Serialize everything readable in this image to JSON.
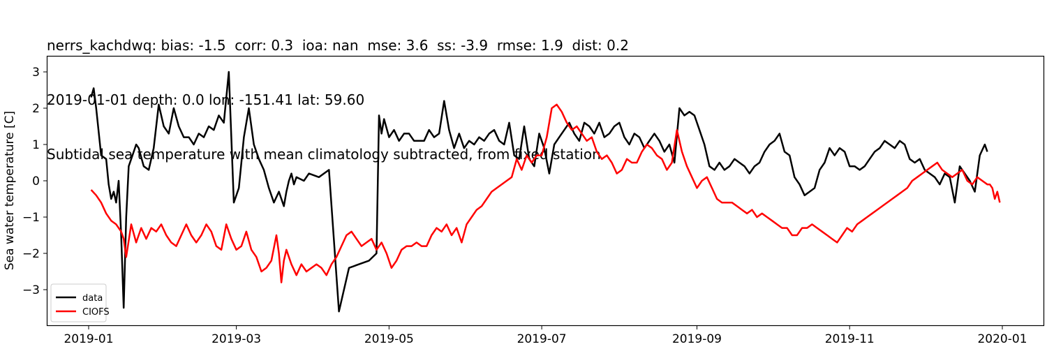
{
  "title": {
    "line1": "nerrs_kachdwq: bias: -1.5  corr: 0.3  ioa: nan  mse: 3.6  ss: -3.9  rmse: 1.9  dist: 0.2",
    "line2": "2019-01-01 depth: 0.0 lon: -151.41 lat: 59.60",
    "line3": "Subtidal sea temperature with mean climatology subtracted, from fixed station"
  },
  "colors": {
    "data": "#000000",
    "model": "#ff0000",
    "axis": "#000000",
    "background": "#ffffff"
  },
  "chart_data": {
    "type": "line",
    "title": "Subtidal sea temperature with mean climatology subtracted, from fixed station",
    "subtitle": "nerrs_kachdwq: bias: -1.5  corr: 0.3  ioa: nan  mse: 3.6  ss: -3.9  rmse: 1.9  dist: 0.2 | 2019-01-01 depth: 0.0 lon: -151.41 lat: 59.60",
    "xlabel": "",
    "ylabel": "Sea water temperature [C]",
    "ylim": [
      -4.0,
      3.45
    ],
    "xlim_days": [
      -16.5,
      382
    ],
    "grid": false,
    "legend_position": "lower left",
    "x_ticks": [
      {
        "label": "2019-01",
        "day": 0
      },
      {
        "label": "2019-03",
        "day": 59
      },
      {
        "label": "2019-05",
        "day": 120
      },
      {
        "label": "2019-07",
        "day": 181
      },
      {
        "label": "2019-09",
        "day": 243
      },
      {
        "label": "2019-11",
        "day": 304
      },
      {
        "label": "2020-01",
        "day": 365
      }
    ],
    "y_ticks": [
      3,
      2,
      1,
      0,
      -1,
      -2,
      -3
    ],
    "x_unit": "day of year 2019 (0 = 2019-01-01)",
    "series": [
      {
        "name": "data",
        "color": "#000000",
        "days": [
          1,
          2,
          3,
          5,
          7,
          8,
          9,
          10,
          11,
          12,
          13,
          14,
          15,
          16,
          17,
          18,
          19,
          20,
          22,
          24,
          26,
          28,
          30,
          32,
          34,
          36,
          38,
          40,
          42,
          44,
          46,
          48,
          50,
          52,
          54,
          56,
          58,
          60,
          62,
          64,
          66,
          68,
          70,
          72,
          74,
          76,
          78,
          79,
          80,
          81,
          82,
          83,
          86,
          88,
          92,
          96,
          100,
          104,
          108,
          112,
          115,
          116,
          117,
          118,
          120,
          122,
          124,
          126,
          128,
          130,
          132,
          134,
          136,
          138,
          140,
          142,
          144,
          146,
          148,
          150,
          152,
          154,
          156,
          158,
          160,
          162,
          164,
          166,
          168,
          170,
          172,
          174,
          176,
          178,
          180,
          182,
          184,
          186,
          188,
          190,
          192,
          194,
          196,
          198,
          200,
          202,
          204,
          206,
          208,
          210,
          212,
          214,
          216,
          218,
          220,
          222,
          224,
          226,
          228,
          230,
          232,
          234,
          236,
          238,
          240,
          242,
          244,
          246,
          248,
          250,
          252,
          254,
          256,
          258,
          260,
          262,
          264,
          266,
          268,
          270,
          272,
          274,
          276,
          278,
          280,
          282,
          284,
          286,
          288,
          290,
          292,
          294,
          296,
          298,
          300,
          302,
          304,
          306,
          308,
          310,
          312,
          314,
          316,
          318,
          320,
          322,
          324,
          326,
          328,
          330,
          332,
          334,
          336,
          338,
          340,
          342,
          344,
          346,
          348,
          350,
          352,
          354,
          356,
          358,
          359,
          360,
          361,
          362,
          363,
          364
        ],
        "values": [
          2.3,
          2.55,
          2.0,
          0.7,
          0.6,
          -0.1,
          -0.5,
          -0.3,
          -0.6,
          0.0,
          -1.5,
          -3.5,
          -1.0,
          0.4,
          0.6,
          0.8,
          1.0,
          0.9,
          0.4,
          0.3,
          0.9,
          2.1,
          1.5,
          1.3,
          2.0,
          1.5,
          1.2,
          1.2,
          1.0,
          1.3,
          1.2,
          1.5,
          1.4,
          1.8,
          1.6,
          3.0,
          -0.6,
          -0.2,
          1.2,
          2.0,
          1.0,
          0.6,
          0.3,
          -0.2,
          -0.6,
          -0.3,
          -0.7,
          -0.3,
          0.0,
          0.2,
          -0.1,
          0.1,
          0.0,
          0.2,
          0.1,
          0.3,
          -3.6,
          -2.4,
          -2.3,
          -2.2,
          -2.0,
          1.8,
          1.3,
          1.7,
          1.2,
          1.4,
          1.1,
          1.3,
          1.3,
          1.1,
          1.1,
          1.1,
          1.4,
          1.2,
          1.3,
          2.2,
          1.4,
          0.9,
          1.3,
          0.9,
          1.1,
          1.0,
          1.2,
          1.1,
          1.3,
          1.4,
          1.1,
          1.0,
          1.6,
          0.7,
          0.6,
          1.5,
          0.6,
          0.4,
          1.3,
          0.9,
          0.2,
          1.0,
          1.2,
          1.4,
          1.6,
          1.3,
          1.1,
          1.6,
          1.5,
          1.3,
          1.6,
          1.2,
          1.3,
          1.5,
          1.6,
          1.2,
          1.0,
          1.3,
          1.2,
          0.9,
          1.1,
          1.3,
          1.1,
          0.8,
          1.0,
          0.5,
          2.0,
          1.8,
          1.9,
          1.8,
          1.4,
          1.0,
          0.4,
          0.3,
          0.5,
          0.3,
          0.4,
          0.6,
          0.5,
          0.4,
          0.2,
          0.4,
          0.5,
          0.8,
          1.0,
          1.1,
          1.3,
          0.8,
          0.7,
          0.1,
          -0.1,
          -0.4,
          -0.3,
          -0.2,
          0.3,
          0.5,
          0.9,
          0.7,
          0.9,
          0.8,
          0.4,
          0.4,
          0.3,
          0.4,
          0.6,
          0.8,
          0.9,
          1.1,
          1.0,
          0.9,
          1.1,
          1.0,
          0.6,
          0.5,
          0.6,
          0.3,
          0.2,
          0.1,
          -0.1,
          0.2,
          0.1,
          -0.6,
          0.4,
          0.2,
          0.0,
          -0.3,
          0.7,
          1.0,
          0.8
        ],
        "values_note": "approximate, read from plot"
      },
      {
        "name": "CIOFS",
        "color": "#ff0000",
        "days": [
          1,
          3,
          5,
          7,
          9,
          11,
          13,
          14,
          15,
          17,
          19,
          21,
          23,
          25,
          27,
          29,
          31,
          33,
          35,
          37,
          39,
          41,
          43,
          45,
          47,
          49,
          51,
          53,
          55,
          57,
          59,
          61,
          63,
          65,
          67,
          69,
          71,
          73,
          75,
          76,
          77,
          78,
          79,
          81,
          83,
          85,
          87,
          89,
          91,
          93,
          95,
          97,
          99,
          101,
          103,
          105,
          107,
          109,
          111,
          113,
          115,
          117,
          119,
          121,
          123,
          125,
          127,
          129,
          131,
          133,
          135,
          137,
          139,
          141,
          143,
          145,
          147,
          149,
          151,
          153,
          155,
          157,
          159,
          161,
          163,
          165,
          167,
          169,
          171,
          173,
          175,
          177,
          179,
          181,
          183,
          185,
          187,
          189,
          191,
          193,
          195,
          197,
          199,
          201,
          203,
          205,
          207,
          209,
          211,
          213,
          215,
          217,
          219,
          221,
          223,
          225,
          227,
          229,
          231,
          233,
          235,
          237,
          239,
          241,
          243,
          245,
          247,
          249,
          251,
          253,
          255,
          257,
          259,
          261,
          263,
          265,
          267,
          269,
          271,
          273,
          275,
          277,
          279,
          281,
          283,
          285,
          287,
          289,
          291,
          293,
          295,
          297,
          299,
          301,
          303,
          305,
          307,
          309,
          311,
          313,
          315,
          317,
          319,
          321,
          323,
          325,
          327,
          329,
          331,
          333,
          335,
          337,
          339,
          341,
          343,
          345,
          347,
          349,
          351,
          353,
          355,
          357,
          359,
          360,
          361,
          362,
          363,
          364
        ],
        "values": [
          -0.25,
          -0.4,
          -0.6,
          -0.9,
          -1.1,
          -1.2,
          -1.4,
          -1.6,
          -2.1,
          -1.2,
          -1.7,
          -1.3,
          -1.6,
          -1.3,
          -1.4,
          -1.2,
          -1.5,
          -1.7,
          -1.8,
          -1.5,
          -1.2,
          -1.5,
          -1.7,
          -1.5,
          -1.2,
          -1.4,
          -1.8,
          -1.9,
          -1.2,
          -1.6,
          -1.9,
          -1.8,
          -1.4,
          -1.9,
          -2.1,
          -2.5,
          -2.4,
          -2.2,
          -1.5,
          -2.0,
          -2.8,
          -2.2,
          -1.9,
          -2.3,
          -2.6,
          -2.3,
          -2.5,
          -2.4,
          -2.3,
          -2.4,
          -2.6,
          -2.3,
          -2.1,
          -1.8,
          -1.5,
          -1.4,
          -1.6,
          -1.8,
          -1.7,
          -1.6,
          -1.9,
          -1.7,
          -2.0,
          -2.4,
          -2.2,
          -1.9,
          -1.8,
          -1.8,
          -1.7,
          -1.8,
          -1.8,
          -1.5,
          -1.3,
          -1.4,
          -1.2,
          -1.5,
          -1.3,
          -1.7,
          -1.2,
          -1.0,
          -0.8,
          -0.7,
          -0.5,
          -0.3,
          -0.2,
          -0.1,
          0.0,
          0.1,
          0.6,
          0.3,
          0.7,
          0.5,
          0.7,
          0.7,
          1.2,
          2.0,
          2.1,
          1.9,
          1.6,
          1.4,
          1.5,
          1.3,
          1.1,
          1.2,
          0.8,
          0.6,
          0.7,
          0.5,
          0.2,
          0.3,
          0.6,
          0.5,
          0.5,
          0.8,
          1.0,
          0.9,
          0.7,
          0.6,
          0.3,
          0.5,
          1.4,
          0.8,
          0.4,
          0.1,
          -0.2,
          0.0,
          0.1,
          -0.2,
          -0.5,
          -0.6,
          -0.6,
          -0.6,
          -0.7,
          -0.8,
          -0.9,
          -0.8,
          -1.0,
          -0.9,
          -1.0,
          -1.1,
          -1.2,
          -1.3,
          -1.3,
          -1.5,
          -1.5,
          -1.3,
          -1.3,
          -1.2,
          -1.3,
          -1.4,
          -1.5,
          -1.6,
          -1.7,
          -1.5,
          -1.3,
          -1.4,
          -1.2,
          -1.1,
          -1.0,
          -0.9,
          -0.8,
          -0.7,
          -0.6,
          -0.5,
          -0.4,
          -0.3,
          -0.2,
          0.0,
          0.1,
          0.2,
          0.3,
          0.4,
          0.5,
          0.3,
          0.2,
          0.1,
          0.2,
          0.3,
          0.0,
          -0.1,
          0.1,
          0.0,
          -0.1,
          -0.1,
          -0.2,
          -0.5,
          -0.3,
          -0.6,
          -0.9,
          -0.6,
          -0.4,
          -0.5
        ],
        "values_note": "approximate, read from plot"
      }
    ]
  },
  "legend": {
    "items": [
      {
        "label": "data",
        "color": "#000000"
      },
      {
        "label": "CIOFS",
        "color": "#ff0000"
      }
    ]
  }
}
